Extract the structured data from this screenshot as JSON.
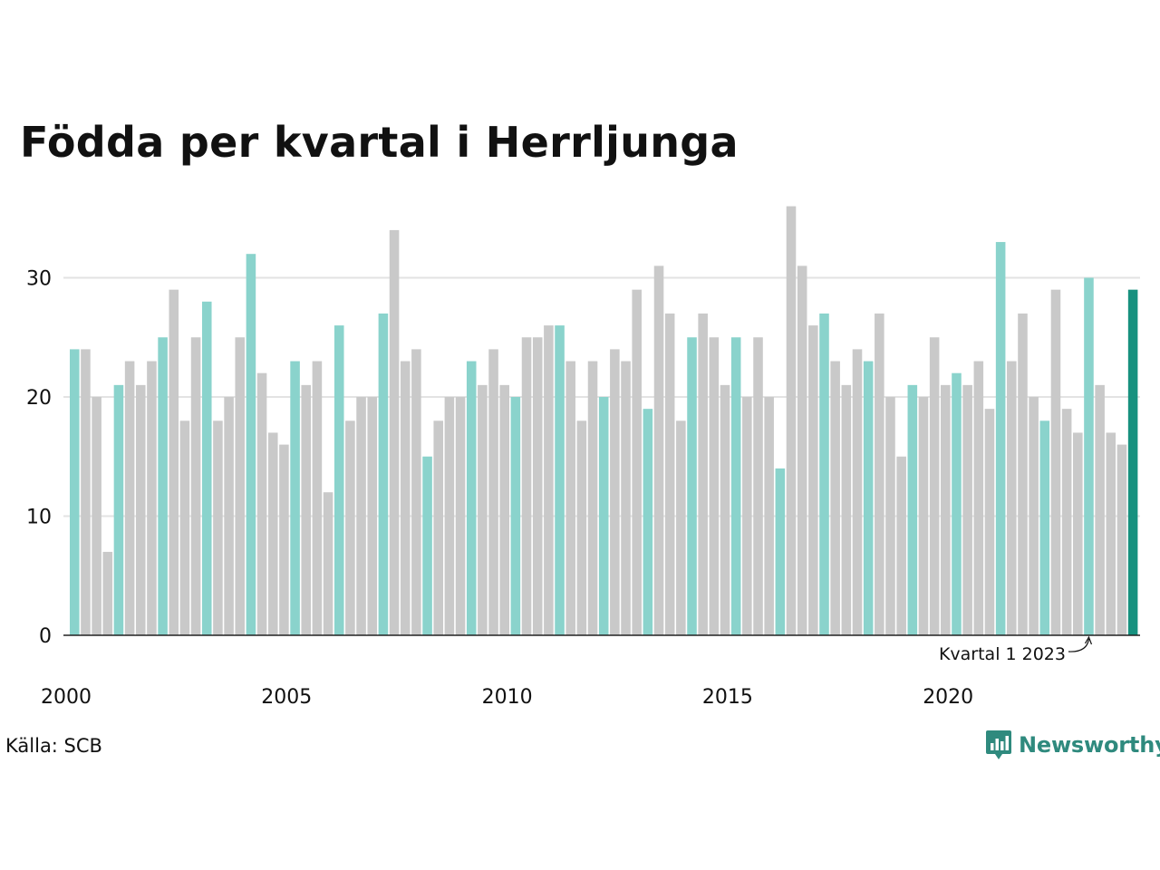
{
  "title": "Födda per kvartal i Herrljunga",
  "source": "Källa: SCB",
  "brand": "Newsworthy",
  "colors": {
    "q1": "#8ad3cc",
    "other": "#c9c9c9",
    "highlight": "#17917f",
    "grid": "#e3e3e3",
    "axis": "#222222",
    "brand": "#2f8a7e"
  },
  "chart_data": {
    "type": "bar",
    "title": "Födda per kvartal i Herrljunga",
    "xlabel": "",
    "ylabel": "",
    "ylim": [
      0,
      36
    ],
    "yticks": [
      0,
      10,
      20,
      30
    ],
    "grid": true,
    "start_year": 2000,
    "start_quarter": 1,
    "xtick_labels": [
      "2000",
      "2005",
      "2010",
      "2015",
      "2020"
    ],
    "annotation": "Kvartal 1 2023",
    "values": [
      24,
      24,
      20,
      7,
      21,
      23,
      21,
      23,
      25,
      29,
      18,
      25,
      28,
      18,
      20,
      25,
      32,
      22,
      17,
      16,
      23,
      21,
      23,
      12,
      26,
      18,
      20,
      20,
      27,
      34,
      23,
      24,
      15,
      18,
      20,
      20,
      23,
      21,
      24,
      21,
      20,
      25,
      25,
      26,
      26,
      23,
      18,
      23,
      20,
      24,
      23,
      29,
      19,
      31,
      27,
      18,
      25,
      27,
      25,
      21,
      25,
      20,
      25,
      20,
      14,
      36,
      31,
      26,
      27,
      23,
      21,
      24,
      23,
      27,
      20,
      15,
      21,
      20,
      25,
      21,
      22,
      21,
      23,
      19,
      33,
      23,
      27,
      20,
      18,
      29,
      19,
      17,
      30,
      21,
      17,
      16,
      29
    ]
  }
}
